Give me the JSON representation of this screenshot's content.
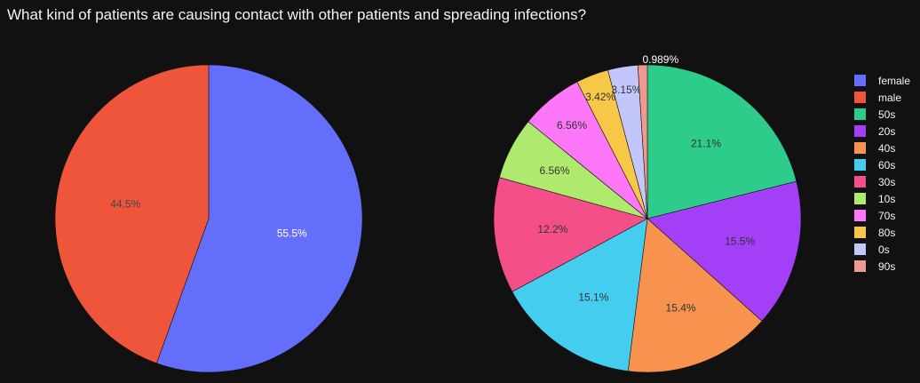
{
  "title": "What kind of patients are causing contact with other patients and spreading infections?",
  "chart_data": [
    {
      "type": "pie",
      "labels": [
        "female",
        "male"
      ],
      "values": [
        55.5,
        44.5
      ],
      "value_labels": [
        "55.5%",
        "44.5%"
      ],
      "colors": [
        "#636efa",
        "#ef553b"
      ],
      "text_colors": [
        "#ffffff",
        "#444444"
      ]
    },
    {
      "type": "pie",
      "labels": [
        "50s",
        "20s",
        "40s",
        "60s",
        "30s",
        "10s",
        "70s",
        "80s",
        "0s",
        "90s"
      ],
      "values": [
        21.1,
        15.5,
        15.4,
        15.1,
        12.2,
        6.56,
        6.56,
        3.42,
        3.15,
        0.989
      ],
      "value_labels": [
        "21.1%",
        "15.5%",
        "15.4%",
        "15.1%",
        "12.2%",
        "6.56%",
        "6.56%",
        "3.42%",
        "3.15%",
        "0.989%"
      ],
      "colors": [
        "#2ecc8a",
        "#a23ff7",
        "#f7934f",
        "#45cdef",
        "#f54f8a",
        "#afea6e",
        "#fd77f8",
        "#f7c748",
        "#c3c6fb",
        "#f09a8f"
      ],
      "text_colors": [
        "#333333",
        "#333333",
        "#333333",
        "#333333",
        "#333333",
        "#333333",
        "#333333",
        "#333333",
        "#333333",
        "#ffffff"
      ]
    }
  ],
  "legend": [
    {
      "label": "female",
      "color": "#636efa"
    },
    {
      "label": "male",
      "color": "#ef553b"
    },
    {
      "label": "50s",
      "color": "#2ecc8a"
    },
    {
      "label": "20s",
      "color": "#a23ff7"
    },
    {
      "label": "40s",
      "color": "#f7934f"
    },
    {
      "label": "60s",
      "color": "#45cdef"
    },
    {
      "label": "30s",
      "color": "#f54f8a"
    },
    {
      "label": "10s",
      "color": "#afea6e"
    },
    {
      "label": "70s",
      "color": "#fd77f8"
    },
    {
      "label": "80s",
      "color": "#f7c748"
    },
    {
      "label": "0s",
      "color": "#c3c6fb"
    },
    {
      "label": "90s",
      "color": "#f09a8f"
    }
  ]
}
